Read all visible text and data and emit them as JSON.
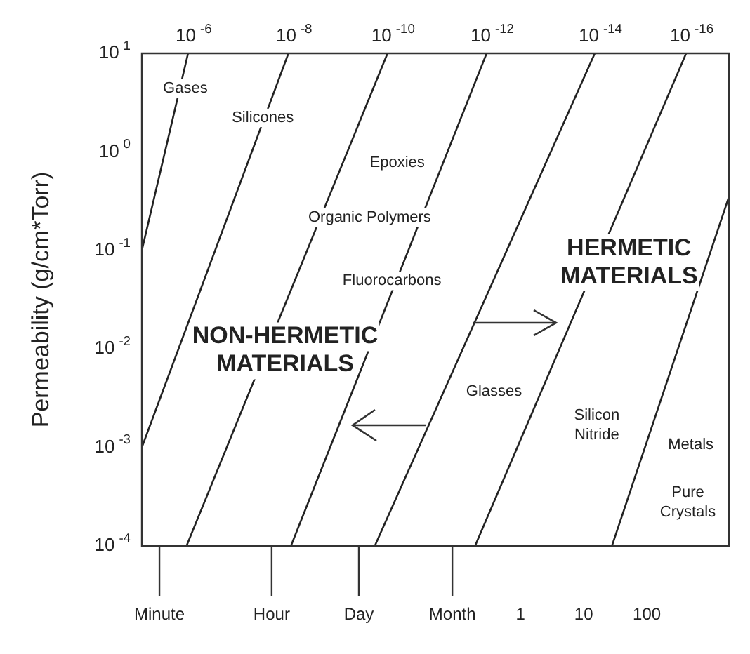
{
  "chart_data": {
    "type": "line",
    "ylabel": "Permeability (g/cm*Torr)",
    "log": "xy",
    "grid": false,
    "legend": false,
    "marker": "none",
    "line_style": "solid",
    "xlim": [
      1e-06,
      2000
    ],
    "xticks": [
      {
        "value": 1.9e-06,
        "label": "Minute"
      },
      {
        "value": 0.000114,
        "label": "Hour"
      },
      {
        "value": 0.00274,
        "label": "Day"
      },
      {
        "value": 0.083,
        "label": "Month"
      },
      1,
      10,
      100
    ],
    "ylim": [
      0.0001,
      10
    ],
    "yticks": [
      {
        "value": 10,
        "label": "10$^{1}$"
      },
      {
        "value": 1,
        "label": "10$^{0}$"
      },
      {
        "value": 0.1,
        "label": "10$^{-1}$"
      },
      {
        "value": 0.01,
        "label": "10$^{-2}$"
      },
      {
        "value": 0.001,
        "label": "10$^{-3}$"
      },
      {
        "value": 0.0001,
        "label": "10$^{-4}$"
      }
    ],
    "series": [
      {
        "name": "10$^{-6}$",
        "color": "#222222",
        "x": [
          1e-06,
          5.4e-06
        ],
        "values": [
          0.1,
          10
        ]
      },
      {
        "name": "10$^{-8}$",
        "color": "#222222",
        "x": [
          1e-06,
          0.00021
        ],
        "values": [
          0.001,
          10
        ]
      },
      {
        "name": "10$^{-10}$",
        "color": "#222222",
        "x": [
          5.1e-06,
          0.0078
        ],
        "values": [
          0.0001,
          10
        ]
      },
      {
        "name": "10$^{-12}$",
        "color": "#222222",
        "x": [
          0.00023,
          0.29
        ],
        "values": [
          0.0001,
          10
        ]
      },
      {
        "name": "10$^{-14}$",
        "color": "#222222",
        "x": [
          0.0049,
          15
        ],
        "values": [
          0.0001,
          10
        ]
      },
      {
        "name": "10$^{-16}$",
        "color": "#222222",
        "x": [
          0.19,
          420
        ],
        "values": [
          0.0001,
          10
        ]
      },
      {
        "color": "#222222",
        "x": [
          28,
          2000
        ],
        "values": [
          0.0001,
          0.35
        ]
      }
    ],
    "annotations": [
      "Gases",
      "Silicones",
      "Epoxies",
      "Organic Polymers",
      "Fluorocarbons",
      "NON-HERMETIC\nMATERIALS",
      "HERMETIC\nMATERIALS",
      "Glasses",
      "Silicon\nNitride",
      "Metals",
      "Pure\nCrystals"
    ]
  }
}
